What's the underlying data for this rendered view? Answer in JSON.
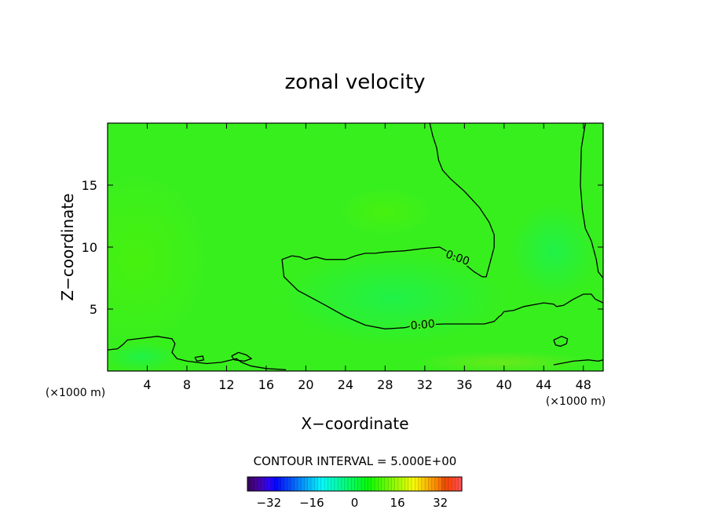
{
  "chart_data": {
    "type": "heatmap",
    "title": "zonal velocity",
    "xlabel": "X−coordinate",
    "ylabel": "Z−coordinate",
    "x_unit_left": "(×1000 m)",
    "x_unit_right": "(×1000 m)",
    "xlim": [
      0,
      50
    ],
    "ylim": [
      0,
      20
    ],
    "x_ticks": [
      4,
      8,
      12,
      16,
      20,
      24,
      28,
      32,
      36,
      40,
      44,
      48
    ],
    "x_tick_labels": [
      "4",
      "8",
      "12",
      "16",
      "20",
      "24",
      "28",
      "32",
      "36",
      "40",
      "44",
      "48"
    ],
    "y_ticks": [
      5,
      10,
      15
    ],
    "y_tick_labels": [
      "5",
      "10",
      "15"
    ],
    "contour_interval_text": "CONTOUR INTERVAL = 5.000E+00",
    "contour_labels": [
      {
        "text": "0.00",
        "x": 35.3,
        "y": 9.1,
        "angle": 20
      },
      {
        "text": "0.00",
        "x": 31.8,
        "y": 3.7,
        "angle": -5
      }
    ],
    "zero_contours": [
      [
        [
          18.6,
          9.3
        ],
        [
          17.6,
          9.0
        ],
        [
          17.8,
          7.6
        ],
        [
          19.2,
          6.5
        ],
        [
          22.0,
          5.3
        ],
        [
          24.0,
          4.4
        ],
        [
          26.0,
          3.7
        ],
        [
          28.0,
          3.4
        ],
        [
          30.0,
          3.5
        ],
        [
          31.0,
          3.7
        ],
        [
          34.0,
          3.8
        ],
        [
          38.0,
          3.8
        ],
        [
          39.0,
          4.0
        ],
        [
          39.5,
          4.4
        ],
        [
          39.7,
          4.5
        ],
        [
          40.0,
          4.8
        ],
        [
          41.0,
          4.9
        ],
        [
          42.0,
          5.2
        ],
        [
          44.0,
          5.5
        ],
        [
          45.0,
          5.4
        ],
        [
          45.3,
          5.2
        ],
        [
          46.0,
          5.3
        ],
        [
          47.0,
          5.8
        ],
        [
          48.0,
          6.2
        ],
        [
          48.8,
          6.2
        ],
        [
          49.2,
          5.8
        ],
        [
          50.0,
          5.5
        ]
      ],
      [
        [
          18.6,
          9.3
        ],
        [
          19.4,
          9.2
        ],
        [
          20.0,
          9.0
        ],
        [
          21.0,
          9.2
        ],
        [
          22.0,
          9.0
        ],
        [
          24.0,
          9.0
        ],
        [
          25.0,
          9.3
        ],
        [
          26.0,
          9.5
        ],
        [
          27.0,
          9.5
        ],
        [
          28.0,
          9.6
        ],
        [
          30.0,
          9.7
        ],
        [
          32.0,
          9.9
        ],
        [
          33.5,
          10.0
        ],
        [
          35.0,
          9.3
        ],
        [
          37.0,
          8.0
        ],
        [
          37.8,
          7.6
        ],
        [
          38.2,
          7.6
        ],
        [
          38.5,
          8.5
        ],
        [
          39.0,
          10.0
        ],
        [
          39.0,
          11.0
        ],
        [
          38.5,
          12.0
        ],
        [
          37.5,
          13.2
        ],
        [
          36.0,
          14.5
        ],
        [
          34.6,
          15.5
        ],
        [
          33.8,
          16.2
        ],
        [
          33.4,
          17.0
        ],
        [
          33.2,
          18.0
        ],
        [
          32.8,
          19.0
        ],
        [
          32.5,
          20.0
        ]
      ],
      [
        [
          48.2,
          20.0
        ],
        [
          47.8,
          18.0
        ],
        [
          47.7,
          15.0
        ],
        [
          47.9,
          13.0
        ],
        [
          48.2,
          11.5
        ],
        [
          48.8,
          10.5
        ],
        [
          49.3,
          9.0
        ],
        [
          49.5,
          8.0
        ],
        [
          50.0,
          7.5
        ]
      ],
      [
        [
          0.0,
          1.7
        ],
        [
          1.0,
          1.8
        ],
        [
          1.5,
          2.1
        ],
        [
          2.0,
          2.5
        ],
        [
          3.0,
          2.6
        ],
        [
          5.0,
          2.8
        ],
        [
          6.5,
          2.6
        ],
        [
          6.8,
          2.2
        ],
        [
          6.5,
          1.5
        ],
        [
          7.0,
          1.0
        ],
        [
          8.0,
          0.8
        ],
        [
          10.0,
          0.6
        ],
        [
          11.5,
          0.7
        ],
        [
          12.5,
          0.9
        ],
        [
          13.0,
          1.0
        ],
        [
          13.5,
          0.7
        ],
        [
          14.5,
          0.4
        ],
        [
          16.0,
          0.2
        ],
        [
          18.0,
          0.1
        ]
      ],
      [
        [
          12.5,
          1.2
        ],
        [
          13.2,
          1.5
        ],
        [
          14.0,
          1.3
        ],
        [
          14.5,
          1.0
        ],
        [
          13.8,
          0.8
        ],
        [
          12.8,
          0.9
        ],
        [
          12.5,
          1.2
        ]
      ],
      [
        [
          8.8,
          1.1
        ],
        [
          9.6,
          1.2
        ],
        [
          9.7,
          0.9
        ],
        [
          9.0,
          0.8
        ],
        [
          8.8,
          1.1
        ]
      ],
      [
        [
          45.0,
          2.5
        ],
        [
          45.8,
          2.8
        ],
        [
          46.4,
          2.6
        ],
        [
          46.3,
          2.2
        ],
        [
          45.7,
          2.0
        ],
        [
          45.2,
          2.1
        ],
        [
          45.0,
          2.5
        ]
      ],
      [
        [
          45.0,
          0.5
        ],
        [
          47.0,
          0.8
        ],
        [
          48.5,
          0.9
        ],
        [
          49.5,
          0.8
        ],
        [
          50.0,
          0.9
        ]
      ]
    ],
    "colorbar": {
      "ticks": [
        -32,
        -16,
        0,
        16,
        32
      ],
      "tick_labels": [
        "−32",
        "−16",
        "0",
        "16",
        "32"
      ],
      "range": [
        -40,
        40
      ]
    }
  }
}
